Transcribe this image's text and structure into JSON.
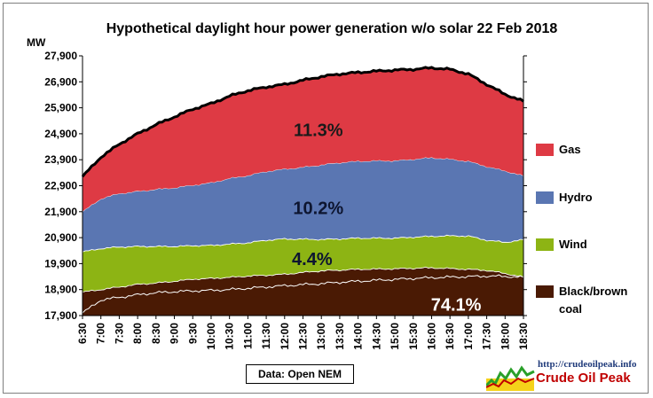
{
  "chart_data": {
    "type": "area",
    "stacked": true,
    "title": "Hypothetical daylight hour power generation w/o solar 22 Feb 2018",
    "ylabel": "MW",
    "ylim": [
      17900,
      27900
    ],
    "y_ticks": [
      "17,900",
      "18,900",
      "19,900",
      "20,900",
      "21,900",
      "22,900",
      "23,900",
      "24,900",
      "25,900",
      "26,900",
      "27,900"
    ],
    "y_tick_values": [
      17900,
      18900,
      19900,
      20900,
      21900,
      22900,
      23900,
      24900,
      25900,
      26900,
      27900
    ],
    "x_ticks": [
      "6:30",
      "7:00",
      "7:30",
      "8:00",
      "8:30",
      "9:00",
      "9:30",
      "10:00",
      "10:30",
      "11:00",
      "11:30",
      "12:00",
      "12:30",
      "13:00",
      "13:30",
      "14:00",
      "14:30",
      "15:00",
      "15:30",
      "16:00",
      "16:30",
      "17:00",
      "17:30",
      "18:00",
      "18:30"
    ],
    "x_minutes_start": 390,
    "x_minutes_end": 1110,
    "x_minutes": [
      390,
      420,
      450,
      480,
      510,
      540,
      570,
      600,
      630,
      660,
      690,
      720,
      750,
      780,
      810,
      840,
      870,
      900,
      930,
      960,
      990,
      1020,
      1050,
      1080,
      1110
    ],
    "series": [
      {
        "name": "Black/brown coal",
        "color": "#4a1a04",
        "top": [
          18800,
          18900,
          19000,
          19100,
          19150,
          19220,
          19300,
          19330,
          19370,
          19420,
          19450,
          19490,
          19560,
          19620,
          19650,
          19680,
          19690,
          19700,
          19720,
          19740,
          19710,
          19680,
          19640,
          19520,
          19380
        ]
      },
      {
        "name": "Wind",
        "color": "#8db414",
        "top": [
          20350,
          20480,
          20540,
          20560,
          20560,
          20560,
          20590,
          20600,
          20650,
          20700,
          20800,
          20850,
          20840,
          20830,
          20850,
          20880,
          20880,
          20880,
          20920,
          20950,
          20970,
          20960,
          20800,
          20720,
          20820
        ]
      },
      {
        "name": "Hydro",
        "color": "#5a76b2",
        "top": [
          21900,
          22400,
          22600,
          22680,
          22760,
          22820,
          22920,
          23010,
          23180,
          23290,
          23450,
          23540,
          23610,
          23700,
          23790,
          23840,
          23860,
          23860,
          23920,
          23980,
          23920,
          23840,
          23640,
          23470,
          23280
        ]
      },
      {
        "name": "Gas",
        "color": "#de3a44",
        "top": [
          23250,
          24000,
          24500,
          24900,
          25250,
          25550,
          25850,
          26060,
          26350,
          26560,
          26700,
          26800,
          26960,
          27100,
          27200,
          27260,
          27310,
          27350,
          27380,
          27440,
          27380,
          27200,
          26800,
          26420,
          26150
        ]
      }
    ],
    "total_line_color": "#000000",
    "white_line": [
      18000,
      18500,
      18600,
      18700,
      18780,
      18820,
      18850,
      18870,
      18900,
      18950,
      19000,
      19050,
      19090,
      19130,
      19180,
      19220,
      19260,
      19290,
      19330,
      19360,
      19380,
      19400,
      19420,
      19410,
      19370
    ],
    "annotations": [
      {
        "text": "11.3%",
        "x_minutes": 775,
        "y": 25050,
        "color": "#1a1a1a"
      },
      {
        "text": "10.2%",
        "x_minutes": 775,
        "y": 22050,
        "color": "#0d1530"
      },
      {
        "text": "4.4%",
        "x_minutes": 765,
        "y": 20090,
        "color": "#0d1530"
      },
      {
        "text": "74.1%",
        "x_minutes": 1000,
        "y": 18330,
        "color": "#ffffff"
      }
    ],
    "legend_position": "right",
    "grid": false
  },
  "source_note": "Data: Open NEM",
  "brand": {
    "url": "http://crudeoilpeak.info",
    "name": "Crude Oil Peak"
  }
}
